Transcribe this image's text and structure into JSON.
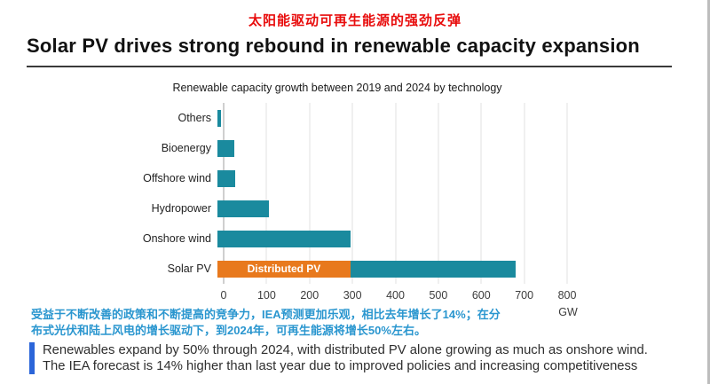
{
  "slide": {
    "title_cn": "太阳能驱动可再生能源的强劲反弹",
    "title_cn_color": "#e80c0c",
    "title_en": "Solar PV drives strong rebound in renewable capacity expansion"
  },
  "chart_data": {
    "type": "bar",
    "orientation": "horizontal",
    "title": "Renewable capacity growth between 2019 and 2024 by technology",
    "categories": [
      "Others",
      "Bioenergy",
      "Offshore wind",
      "Hydropower",
      "Onshore wind",
      "Solar PV"
    ],
    "values": [
      8,
      40,
      42,
      120,
      310,
      695
    ],
    "stacked_segment": {
      "category": "Solar PV",
      "label": "Distributed PV",
      "value": 310,
      "remainder": 385,
      "color": "#e8791d"
    },
    "bar_color": "#1a8a9e",
    "xlim": [
      0,
      800
    ],
    "xticks": [
      0,
      100,
      200,
      300,
      400,
      500,
      600,
      700,
      800
    ],
    "x_unit": "GW",
    "grid": true,
    "legend_position": "none"
  },
  "note_cn": {
    "line1": "受益于不断改善的政策和不断提高的竞争力，IEA预测更加乐观，相比去年增长了14%；在分",
    "line2": "布式光伏和陆上风电的增长驱动下，到2024年，可再生能源将增长50%左右。",
    "color": "#2a96cf"
  },
  "summary": {
    "line1": "Renewables expand by 50% through 2024, with distributed PV alone growing as much as onshore wind.",
    "line2": "The IEA forecast is 14% higher than last year due to improved policies and increasing competitiveness",
    "accent_color": "#2b65d9"
  }
}
